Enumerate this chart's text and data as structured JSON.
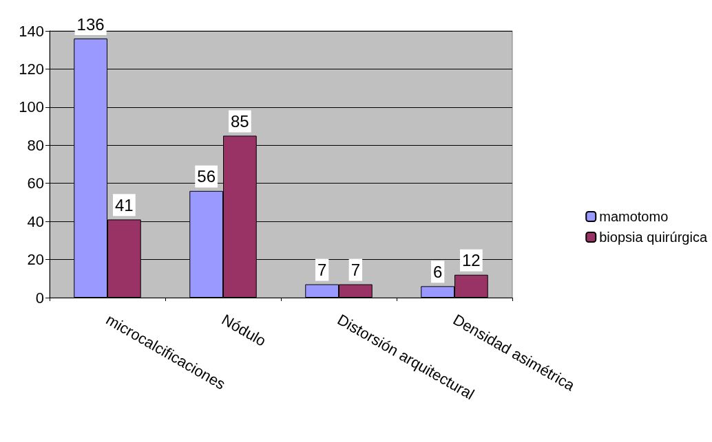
{
  "chart_data": {
    "type": "bar",
    "categories": [
      "microcalcificaciones",
      "Nódulo",
      "Distorsión arquitectural",
      "Densidad asimétrica"
    ],
    "series": [
      {
        "name": "mamotomo",
        "color": "#9999ff",
        "values": [
          136,
          56,
          7,
          6
        ]
      },
      {
        "name": "biopsia quirúrgica",
        "color": "#993366",
        "values": [
          41,
          85,
          7,
          12
        ]
      }
    ],
    "ylim": [
      0,
      140
    ],
    "yticks": [
      0,
      20,
      40,
      60,
      80,
      100,
      120,
      140
    ],
    "grid": "y",
    "legend": "right",
    "data_labels": true
  }
}
